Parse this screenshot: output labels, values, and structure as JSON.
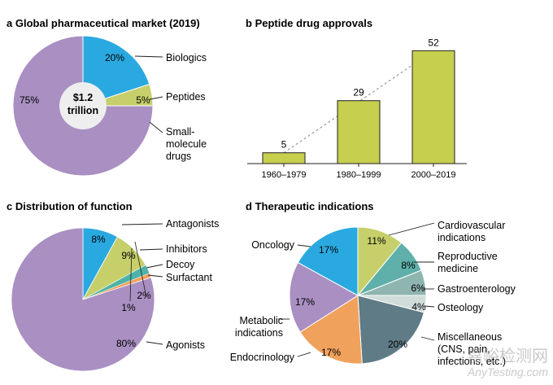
{
  "chart_data": [
    {
      "type": "pie",
      "panel": "a",
      "title": "Global pharmaceutical market (2019)",
      "center_value": "$1.2",
      "center_unit": "trillion",
      "slices": [
        {
          "label": "Biologics",
          "value": 20,
          "text": "20%",
          "color": "#2aa9e0"
        },
        {
          "label": "Peptides",
          "value": 5,
          "text": "5%",
          "color": "#c6cf6a"
        },
        {
          "label_lines": [
            "Small-",
            "molecule",
            "drugs"
          ],
          "value": 75,
          "text": "75%",
          "color": "#a98fc2"
        }
      ]
    },
    {
      "type": "bar",
      "panel": "b",
      "title": "Peptide drug approvals",
      "categories": [
        "1960–1979",
        "1980–1999",
        "2000–2019"
      ],
      "values": [
        5,
        29,
        52
      ],
      "value_labels": [
        "5",
        "29",
        "52"
      ],
      "ylim": [
        0,
        60
      ],
      "bar_color": "#c6cf4e",
      "trend_line": "dashed"
    },
    {
      "type": "pie",
      "panel": "c",
      "title": "Distribution of function",
      "slices": [
        {
          "label": "Antagonists",
          "value": 8,
          "text": "8%",
          "color": "#2aa9e0"
        },
        {
          "label": "Inhibitors",
          "value": 9,
          "text": "9%",
          "color": "#c6cf6a"
        },
        {
          "label": "Decoy",
          "value": 2,
          "text": "2%",
          "color": "#4db3a8"
        },
        {
          "label": "Surfactant",
          "value": 1,
          "text": "1%",
          "color": "#f0a15c"
        },
        {
          "label": "Agonists",
          "value": 80,
          "text": "80%",
          "color": "#a98fc2"
        }
      ]
    },
    {
      "type": "pie",
      "panel": "d",
      "title": "Therapeutic indications",
      "slices": [
        {
          "label_lines": [
            "Cardiovascular",
            "indications"
          ],
          "value": 11,
          "text": "11%",
          "color": "#c6cf6a"
        },
        {
          "label_lines": [
            "Reproductive",
            "medicine"
          ],
          "value": 8,
          "text": "8%",
          "color": "#5fb0aa"
        },
        {
          "label_lines": [
            "Gastroenterology"
          ],
          "value": 6,
          "text": "6%",
          "color": "#8fb5b0"
        },
        {
          "label_lines": [
            "Osteology"
          ],
          "value": 4,
          "text": "4%",
          "color": "#cfdcda"
        },
        {
          "label_lines": [
            "Miscellaneous",
            "(CNS, pain,",
            "infections, etc.)"
          ],
          "value": 20,
          "text": "20%",
          "color": "#5e7b86"
        },
        {
          "label_lines": [
            "Endocrinology"
          ],
          "value": 17,
          "text": "17%",
          "color": "#f0a15c"
        },
        {
          "label_lines": [
            "Metabolic",
            "indications"
          ],
          "value": 17,
          "text": "17%",
          "color": "#a98fc2"
        },
        {
          "label_lines": [
            "Oncology"
          ],
          "value": 17,
          "text": "17%",
          "color": "#2aa9e0"
        }
      ]
    }
  ],
  "watermark": {
    "line1": "嘉峪检测网",
    "line2": "AnyTesting.com"
  }
}
